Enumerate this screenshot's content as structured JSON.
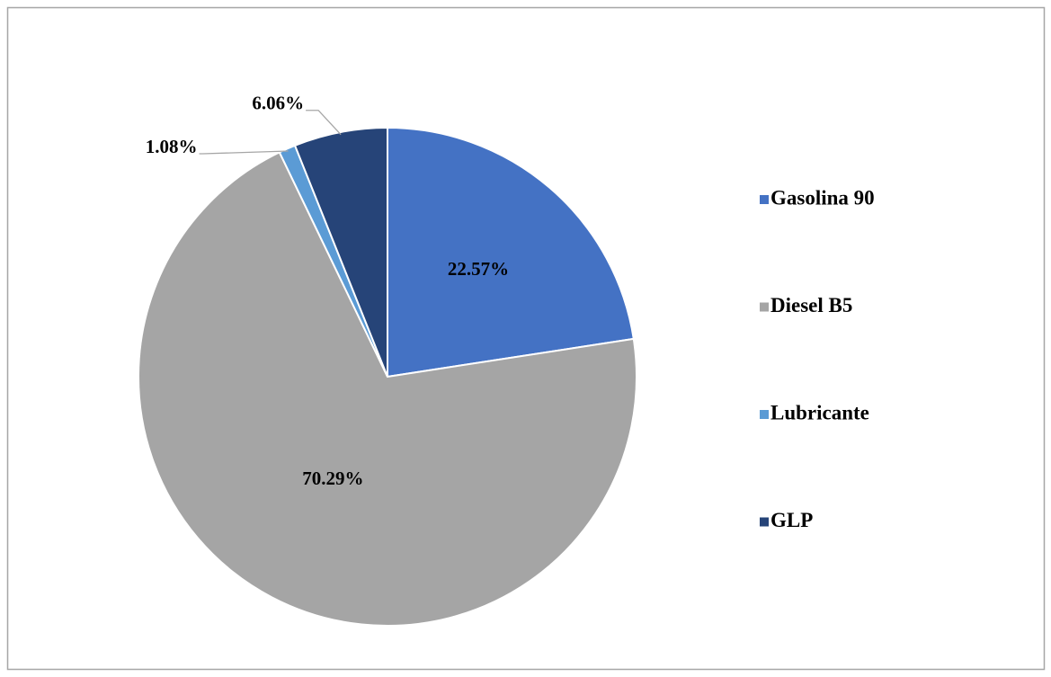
{
  "chart_data": {
    "type": "pie",
    "categories": [
      "Gasolina 90",
      "Diesel B5",
      "Lubricante",
      "GLP"
    ],
    "values": [
      22.57,
      70.29,
      1.08,
      6.06
    ],
    "value_labels": [
      "22.57%",
      "70.29%",
      "1.08%",
      "6.06%"
    ],
    "colors": [
      "#4472c4",
      "#a5a5a5",
      "#5b9bd5",
      "#264478"
    ],
    "legend": "right"
  }
}
